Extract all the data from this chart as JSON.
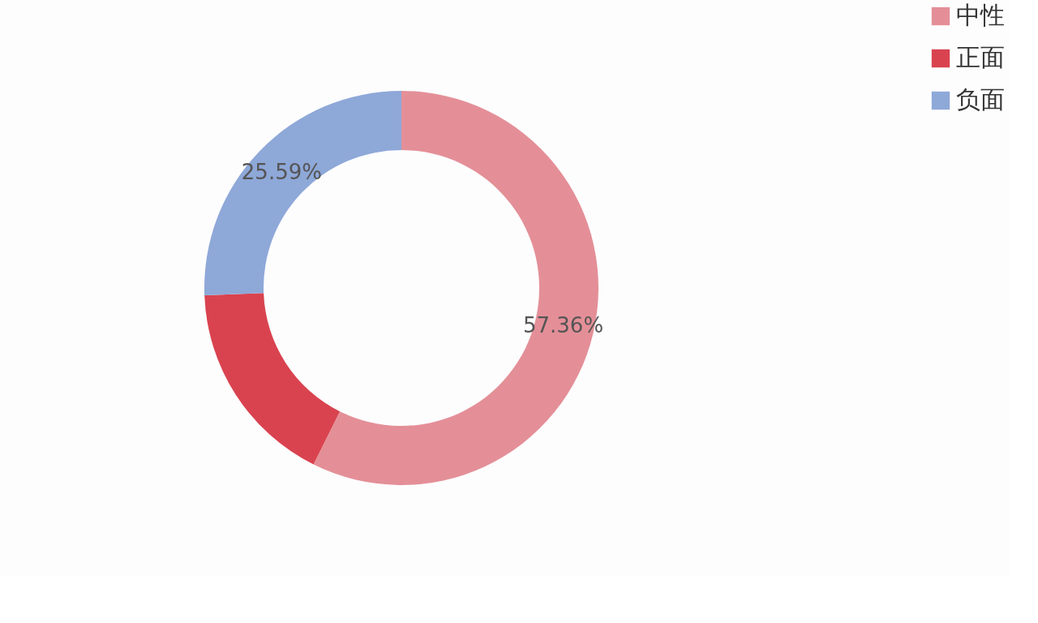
{
  "chart_data": {
    "type": "donut",
    "categories": [
      "中性",
      "正面",
      "负面"
    ],
    "values": [
      57.36,
      17.05,
      25.59
    ],
    "colors": [
      "#e48f98",
      "#d9434f",
      "#8ea8d8"
    ],
    "value_labels": [
      "57.36%",
      null,
      "25.59%"
    ],
    "legend": "right"
  }
}
